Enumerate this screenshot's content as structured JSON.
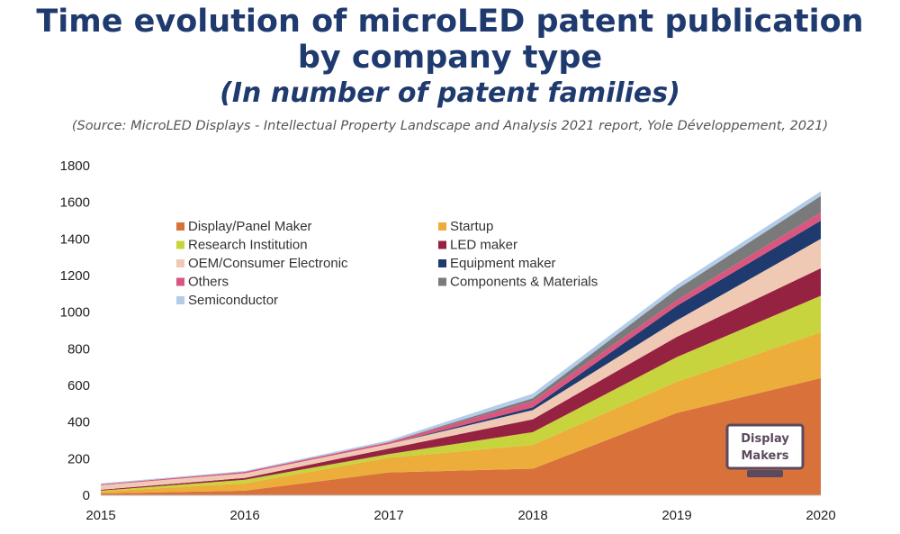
{
  "title_line1": "Time evolution of microLED patent publication",
  "title_line2": "by company type",
  "subtitle": "(In number of patent families)",
  "source": "(Source: MicroLED Displays - Intellectual Property Landscape and Analysis 2021 report, Yole Développement, 2021)",
  "logo": {
    "line1": "Display",
    "line2": "Makers",
    "color": "#5b4a5e"
  },
  "chart_data": {
    "type": "area",
    "stacked": true,
    "x": [
      "2015",
      "2016",
      "2017",
      "2018",
      "2019",
      "2020"
    ],
    "ylim": [
      0,
      1800
    ],
    "yticks": [
      0,
      200,
      400,
      600,
      800,
      1000,
      1200,
      1400,
      1600,
      1800
    ],
    "grid": false,
    "legend_position": "top-left",
    "series": [
      {
        "name": "Display/Panel Maker",
        "color": "#d9723a",
        "values": [
          10,
          25,
          125,
          145,
          450,
          640
        ]
      },
      {
        "name": "Startup",
        "color": "#ecad3a",
        "values": [
          10,
          40,
          80,
          130,
          170,
          250
        ]
      },
      {
        "name": "Research Institution",
        "color": "#c8d43e",
        "values": [
          5,
          20,
          20,
          70,
          135,
          200
        ]
      },
      {
        "name": "LED maker",
        "color": "#962241",
        "values": [
          5,
          10,
          30,
          70,
          110,
          150
        ]
      },
      {
        "name": "OEM/Consumer Electronic",
        "color": "#efc9b4",
        "values": [
          25,
          25,
          25,
          50,
          90,
          160
        ]
      },
      {
        "name": "Equipment maker",
        "color": "#1f3a6e",
        "values": [
          0,
          0,
          0,
          15,
          80,
          100
        ]
      },
      {
        "name": "Others",
        "color": "#d9577f",
        "values": [
          5,
          8,
          10,
          35,
          30,
          45
        ]
      },
      {
        "name": "Components & Materials",
        "color": "#7a7a7a",
        "values": [
          0,
          0,
          0,
          15,
          60,
          90
        ]
      },
      {
        "name": "Semiconductor",
        "color": "#b3cde9",
        "values": [
          5,
          5,
          10,
          25,
          25,
          25
        ]
      }
    ]
  }
}
